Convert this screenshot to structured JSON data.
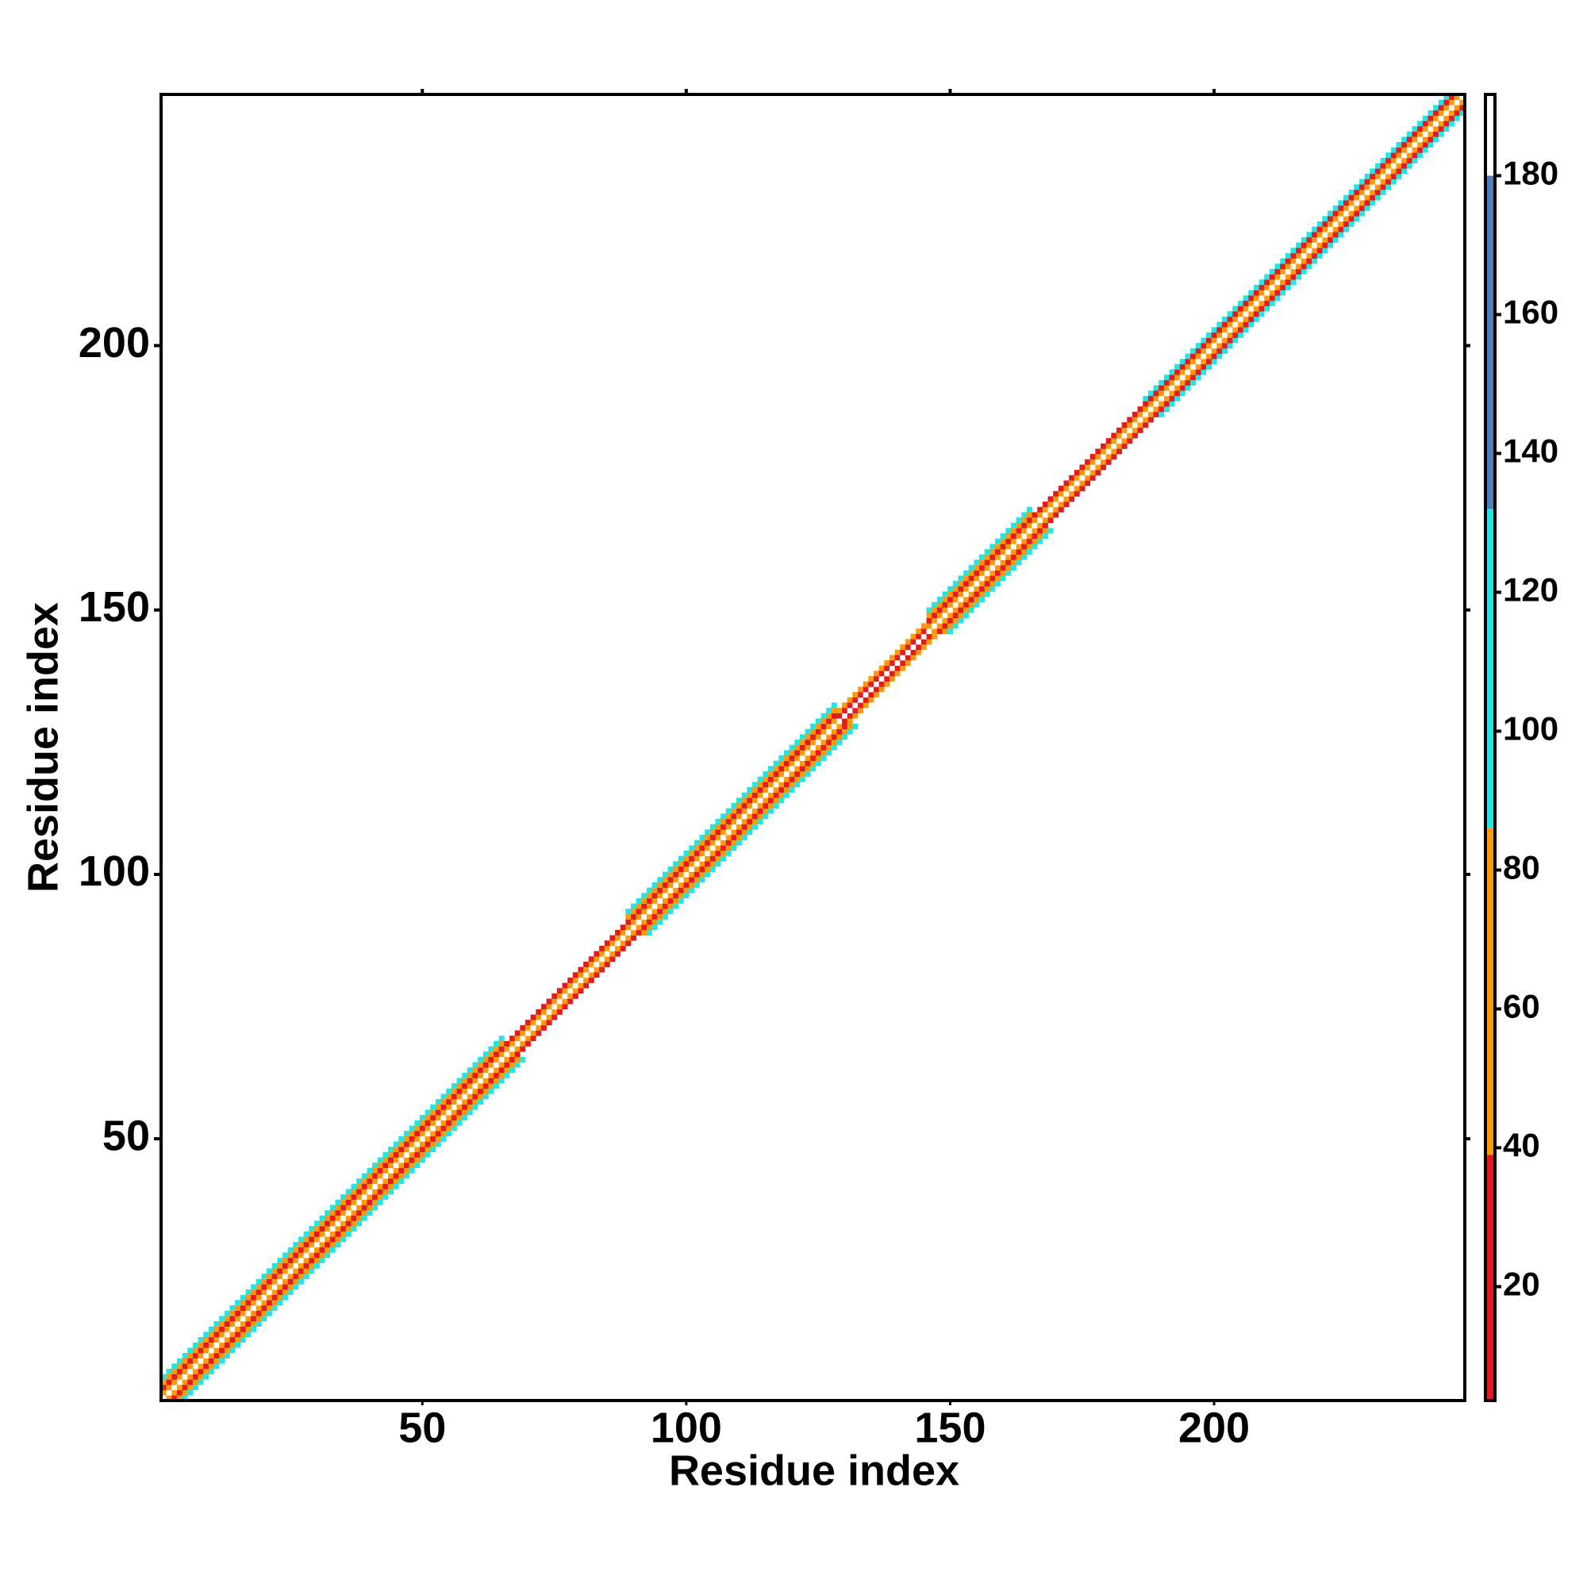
{
  "chart_data": {
    "type": "heatmap",
    "xlabel": "Residue index",
    "ylabel": "Residue index",
    "xlim": [
      0.5,
      247.5
    ],
    "ylim": [
      0.5,
      247.5
    ],
    "xticks": [
      50,
      100,
      150,
      200
    ],
    "yticks": [
      50,
      100,
      150,
      200
    ],
    "bands": [
      {
        "start": 1,
        "end": 65,
        "values": [
          190,
          60,
          20,
          60,
          110
        ]
      },
      {
        "start": 66,
        "end": 88,
        "values": [
          190,
          70,
          20
        ]
      },
      {
        "start": 89,
        "end": 128,
        "values": [
          190,
          60,
          20,
          60,
          110
        ]
      },
      {
        "start": 129,
        "end": 145,
        "values": [
          190,
          25,
          70
        ]
      },
      {
        "start": 146,
        "end": 165,
        "values": [
          190,
          60,
          20,
          60,
          110
        ]
      },
      {
        "start": 166,
        "end": 186,
        "values": [
          190,
          70,
          25
        ]
      },
      {
        "start": 187,
        "end": 192,
        "values": [
          190,
          60,
          20,
          100
        ]
      },
      {
        "start": 193,
        "end": 247,
        "values": [
          190,
          60,
          25,
          110
        ]
      }
    ],
    "colorbar": {
      "clim": [
        3.6,
        191.7
      ],
      "ticks": [
        20,
        40,
        60,
        80,
        100,
        120,
        140,
        160,
        180
      ],
      "segments": [
        {
          "from": 3.6,
          "to": 39,
          "color": "#e41a1c"
        },
        {
          "from": 39,
          "to": 86,
          "color": "#ff9a0a"
        },
        {
          "from": 86,
          "to": 132,
          "color": "#22e5e8"
        },
        {
          "from": 132,
          "to": 180,
          "color": "#4f7fb8"
        },
        {
          "from": 180,
          "to": 191.7,
          "color": "#ffffff"
        }
      ]
    }
  }
}
